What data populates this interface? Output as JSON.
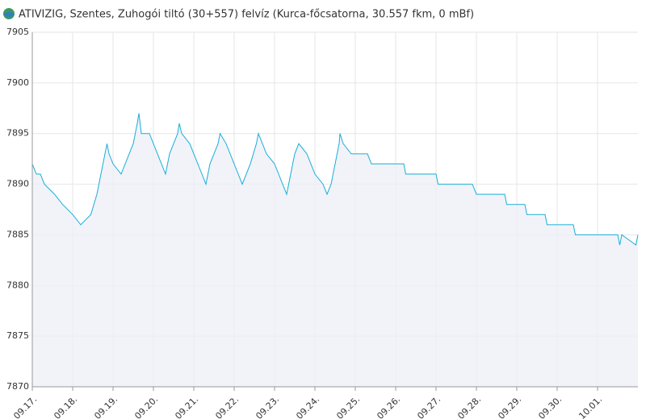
{
  "chart_data": {
    "type": "area",
    "title": "ATIVIZIG, Szentes, Zuhogói tiltó (30+557) felvíz (Kurca-főcsatorna, 30.557 fkm, 0 mBf)",
    "x": [
      0,
      0.1,
      0.2,
      0.3,
      0.55,
      0.75,
      1.0,
      1.2,
      1.45,
      1.6,
      1.7,
      1.8,
      1.85,
      1.9,
      2.0,
      2.2,
      2.4,
      2.5,
      2.6,
      2.64,
      2.7,
      2.9,
      3.0,
      3.1,
      3.2,
      3.3,
      3.4,
      3.5,
      3.6,
      3.64,
      3.7,
      3.9,
      4.0,
      4.1,
      4.2,
      4.3,
      4.4,
      4.5,
      4.6,
      4.65,
      4.8,
      5.0,
      5.1,
      5.2,
      5.4,
      5.55,
      5.6,
      5.7,
      5.8,
      6.0,
      6.1,
      6.2,
      6.3,
      6.4,
      6.5,
      6.6,
      6.8,
      7.0,
      7.2,
      7.3,
      7.4,
      7.5,
      7.6,
      7.62,
      7.7,
      7.9,
      8.3,
      8.4,
      9.2,
      9.25,
      10.0,
      10.05,
      10.9,
      11.0,
      11.7,
      11.75,
      12.2,
      12.25,
      12.7,
      12.75,
      13.4,
      13.45,
      14.5,
      14.55,
      14.6,
      14.95,
      15.0
    ],
    "values": [
      7892,
      7891,
      7891,
      7890,
      7889,
      7888,
      7887,
      7886,
      7887,
      7889,
      7891,
      7893,
      7894,
      7893,
      7892,
      7891,
      7893,
      7894,
      7896,
      7897,
      7895,
      7895,
      7894,
      7893,
      7892,
      7891,
      7893,
      7894,
      7895,
      7896,
      7895,
      7894,
      7893,
      7892,
      7891,
      7890,
      7892,
      7893,
      7894,
      7895,
      7894,
      7892,
      7891,
      7890,
      7892,
      7894,
      7895,
      7894,
      7893,
      7892,
      7891,
      7890,
      7889,
      7891,
      7893,
      7894,
      7893,
      7891,
      7890,
      7889,
      7890,
      7892,
      7894,
      7895,
      7894,
      7893,
      7893,
      7892,
      7892,
      7891,
      7891,
      7890,
      7890,
      7889,
      7889,
      7888,
      7888,
      7887,
      7887,
      7886,
      7886,
      7885,
      7885,
      7884,
      7885,
      7884,
      7885
    ],
    "color": "#1aaed8",
    "xlim": [
      0,
      15
    ],
    "xticks": [
      {
        "value": 0,
        "label": "09.17."
      },
      {
        "value": 1,
        "label": "09.18."
      },
      {
        "value": 2,
        "label": "09.19."
      },
      {
        "value": 3,
        "label": "09.20."
      },
      {
        "value": 4,
        "label": "09.21."
      },
      {
        "value": 5,
        "label": "09.22."
      },
      {
        "value": 6,
        "label": "09.23."
      },
      {
        "value": 7,
        "label": "09.24."
      },
      {
        "value": 8,
        "label": "09.25."
      },
      {
        "value": 9,
        "label": "09.26."
      },
      {
        "value": 10,
        "label": "09.27."
      },
      {
        "value": 11,
        "label": "09.28."
      },
      {
        "value": 12,
        "label": "09.29."
      },
      {
        "value": 13,
        "label": "09.30."
      },
      {
        "value": 14,
        "label": "10.01."
      }
    ],
    "ylim": [
      7870,
      7905
    ],
    "yticks": [
      7870,
      7875,
      7880,
      7885,
      7890,
      7895,
      7900,
      7905
    ],
    "grid": true
  }
}
